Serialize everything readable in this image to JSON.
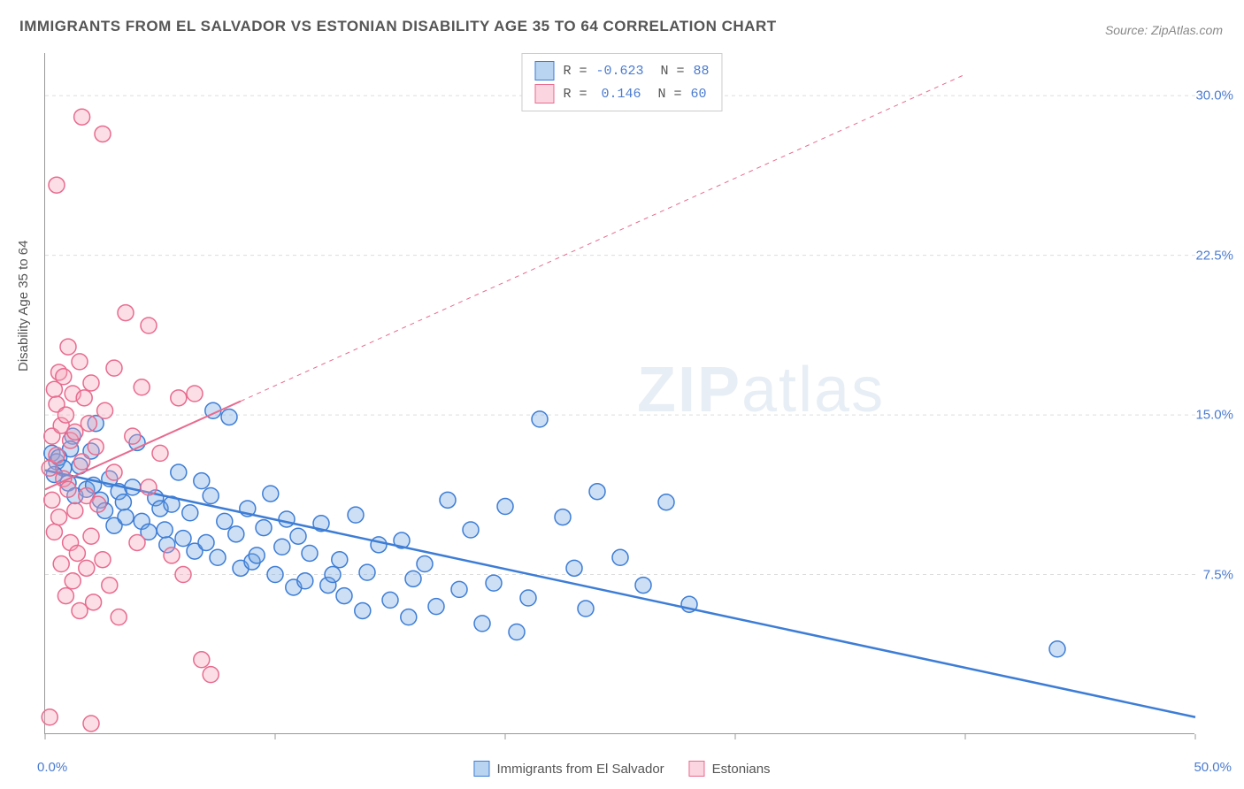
{
  "title": "IMMIGRANTS FROM EL SALVADOR VS ESTONIAN DISABILITY AGE 35 TO 64 CORRELATION CHART",
  "source": "Source: ZipAtlas.com",
  "y_axis_label": "Disability Age 35 to 64",
  "watermark": {
    "part1": "ZIP",
    "part2": "atlas"
  },
  "chart": {
    "type": "scatter",
    "xlim": [
      0,
      50
    ],
    "ylim": [
      0,
      32
    ],
    "x_ticks": [
      0,
      10,
      20,
      30,
      40,
      50
    ],
    "x_tick_labels": [
      "0.0%",
      "",
      "",
      "",
      "",
      "50.0%"
    ],
    "y_ticks": [
      7.5,
      15.0,
      22.5,
      30.0
    ],
    "y_tick_labels": [
      "7.5%",
      "15.0%",
      "22.5%",
      "30.0%"
    ],
    "background_color": "#ffffff",
    "grid_color": "#dddddd",
    "axis_color": "#999999",
    "tick_label_color": "#4a7bd0",
    "marker_radius": 9,
    "marker_stroke_width": 1.5,
    "marker_fill_opacity": 0.35,
    "series": [
      {
        "name": "Immigrants from El Salvador",
        "color": "#6fa3e0",
        "stroke": "#3d7dd6",
        "R": "-0.623",
        "N": "88",
        "trend": {
          "x1": 0,
          "y1": 12.4,
          "x2": 50,
          "y2": 0.8,
          "solid_until_x": 50,
          "width": 2.5
        },
        "points": [
          [
            0.3,
            13.2
          ],
          [
            0.5,
            12.8
          ],
          [
            0.6,
            13.0
          ],
          [
            0.8,
            12.5
          ],
          [
            1.0,
            11.8
          ],
          [
            1.2,
            14.0
          ],
          [
            1.3,
            11.2
          ],
          [
            1.5,
            12.6
          ],
          [
            1.8,
            11.5
          ],
          [
            2.0,
            13.3
          ],
          [
            2.2,
            14.6
          ],
          [
            2.4,
            11.0
          ],
          [
            2.6,
            10.5
          ],
          [
            2.8,
            12.0
          ],
          [
            3.0,
            9.8
          ],
          [
            3.2,
            11.4
          ],
          [
            3.5,
            10.2
          ],
          [
            3.8,
            11.6
          ],
          [
            4.0,
            13.7
          ],
          [
            4.2,
            10.0
          ],
          [
            4.5,
            9.5
          ],
          [
            4.8,
            11.1
          ],
          [
            5.0,
            10.6
          ],
          [
            5.3,
            8.9
          ],
          [
            5.5,
            10.8
          ],
          [
            5.8,
            12.3
          ],
          [
            6.0,
            9.2
          ],
          [
            6.3,
            10.4
          ],
          [
            6.5,
            8.6
          ],
          [
            6.8,
            11.9
          ],
          [
            7.0,
            9.0
          ],
          [
            7.3,
            15.2
          ],
          [
            7.5,
            8.3
          ],
          [
            7.8,
            10.0
          ],
          [
            8.0,
            14.9
          ],
          [
            8.3,
            9.4
          ],
          [
            8.5,
            7.8
          ],
          [
            8.8,
            10.6
          ],
          [
            9.0,
            8.1
          ],
          [
            9.5,
            9.7
          ],
          [
            9.8,
            11.3
          ],
          [
            10.0,
            7.5
          ],
          [
            10.3,
            8.8
          ],
          [
            10.5,
            10.1
          ],
          [
            10.8,
            6.9
          ],
          [
            11.0,
            9.3
          ],
          [
            11.3,
            7.2
          ],
          [
            11.5,
            8.5
          ],
          [
            12.0,
            9.9
          ],
          [
            12.3,
            7.0
          ],
          [
            12.8,
            8.2
          ],
          [
            13.0,
            6.5
          ],
          [
            13.5,
            10.3
          ],
          [
            13.8,
            5.8
          ],
          [
            14.0,
            7.6
          ],
          [
            14.5,
            8.9
          ],
          [
            15.0,
            6.3
          ],
          [
            15.5,
            9.1
          ],
          [
            15.8,
            5.5
          ],
          [
            16.0,
            7.3
          ],
          [
            16.5,
            8.0
          ],
          [
            17.0,
            6.0
          ],
          [
            17.5,
            11.0
          ],
          [
            18.0,
            6.8
          ],
          [
            18.5,
            9.6
          ],
          [
            19.0,
            5.2
          ],
          [
            19.5,
            7.1
          ],
          [
            20.0,
            10.7
          ],
          [
            20.5,
            4.8
          ],
          [
            21.0,
            6.4
          ],
          [
            21.5,
            14.8
          ],
          [
            22.5,
            10.2
          ],
          [
            23.0,
            7.8
          ],
          [
            23.5,
            5.9
          ],
          [
            24.0,
            11.4
          ],
          [
            25.0,
            8.3
          ],
          [
            26.0,
            7.0
          ],
          [
            27.0,
            10.9
          ],
          [
            28.0,
            6.1
          ],
          [
            0.4,
            12.2
          ],
          [
            1.1,
            13.4
          ],
          [
            2.1,
            11.7
          ],
          [
            3.4,
            10.9
          ],
          [
            5.2,
            9.6
          ],
          [
            7.2,
            11.2
          ],
          [
            9.2,
            8.4
          ],
          [
            12.5,
            7.5
          ],
          [
            44.0,
            4.0
          ]
        ]
      },
      {
        "name": "Estonians",
        "color": "#f5a3b8",
        "stroke": "#e86b8f",
        "R": "0.146",
        "N": "60",
        "trend": {
          "x1": 0,
          "y1": 11.5,
          "x2": 40,
          "y2": 31.0,
          "solid_until_x": 8.5,
          "width": 2
        },
        "points": [
          [
            0.2,
            12.5
          ],
          [
            0.3,
            14.0
          ],
          [
            0.3,
            11.0
          ],
          [
            0.4,
            16.2
          ],
          [
            0.4,
            9.5
          ],
          [
            0.5,
            13.1
          ],
          [
            0.5,
            15.5
          ],
          [
            0.6,
            10.2
          ],
          [
            0.6,
            17.0
          ],
          [
            0.7,
            8.0
          ],
          [
            0.7,
            14.5
          ],
          [
            0.8,
            12.0
          ],
          [
            0.8,
            16.8
          ],
          [
            0.9,
            6.5
          ],
          [
            0.9,
            15.0
          ],
          [
            1.0,
            11.5
          ],
          [
            1.0,
            18.2
          ],
          [
            1.1,
            9.0
          ],
          [
            1.1,
            13.8
          ],
          [
            1.2,
            7.2
          ],
          [
            1.2,
            16.0
          ],
          [
            1.3,
            10.5
          ],
          [
            1.3,
            14.2
          ],
          [
            1.4,
            8.5
          ],
          [
            1.5,
            17.5
          ],
          [
            1.5,
            5.8
          ],
          [
            1.6,
            12.8
          ],
          [
            1.7,
            15.8
          ],
          [
            1.8,
            7.8
          ],
          [
            1.8,
            11.2
          ],
          [
            1.9,
            14.6
          ],
          [
            2.0,
            9.3
          ],
          [
            2.0,
            16.5
          ],
          [
            2.1,
            6.2
          ],
          [
            2.2,
            13.5
          ],
          [
            2.3,
            10.8
          ],
          [
            2.5,
            8.2
          ],
          [
            2.6,
            15.2
          ],
          [
            2.8,
            7.0
          ],
          [
            3.0,
            12.3
          ],
          [
            3.0,
            17.2
          ],
          [
            3.2,
            5.5
          ],
          [
            3.5,
            19.8
          ],
          [
            3.8,
            14.0
          ],
          [
            4.0,
            9.0
          ],
          [
            4.2,
            16.3
          ],
          [
            4.5,
            11.6
          ],
          [
            5.0,
            13.2
          ],
          [
            5.5,
            8.4
          ],
          [
            5.8,
            15.8
          ],
          [
            6.0,
            7.5
          ],
          [
            6.5,
            16.0
          ],
          [
            6.8,
            3.5
          ],
          [
            1.6,
            29.0
          ],
          [
            2.5,
            28.2
          ],
          [
            0.5,
            25.8
          ],
          [
            4.5,
            19.2
          ],
          [
            2.0,
            0.5
          ],
          [
            7.2,
            2.8
          ],
          [
            0.2,
            0.8
          ]
        ]
      }
    ]
  },
  "legend_bottom": [
    {
      "label": "Immigrants from El Salvador",
      "fill": "#b8d4f0",
      "stroke": "#3d7dd6"
    },
    {
      "label": "Estonians",
      "fill": "#fbd5e0",
      "stroke": "#e86b8f"
    }
  ],
  "legend_top_swatches": [
    {
      "fill": "#b8d4f0",
      "stroke": "#3d7dd6"
    },
    {
      "fill": "#fbd5e0",
      "stroke": "#e86b8f"
    }
  ]
}
